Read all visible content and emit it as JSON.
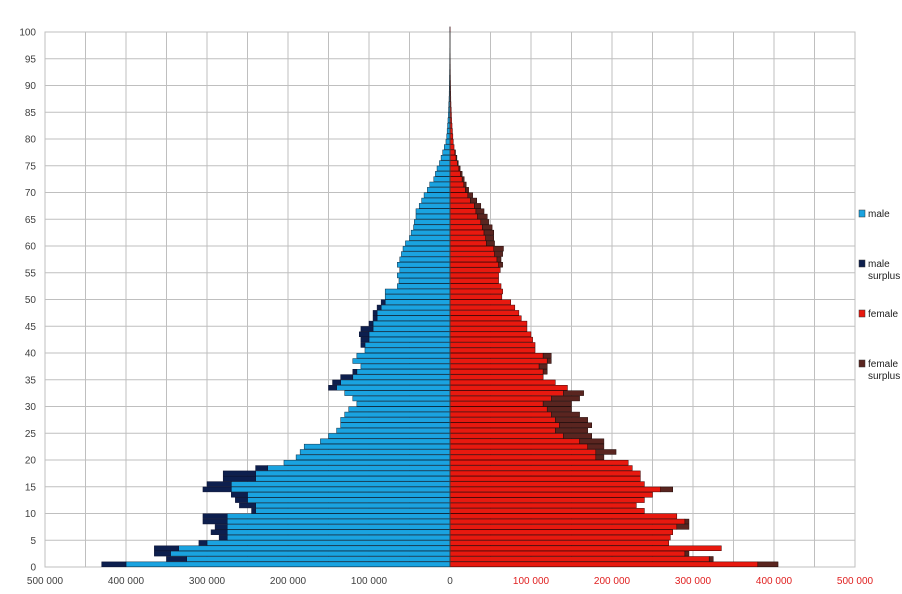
{
  "chart_data": {
    "type": "bar",
    "orientation": "horizontal-pyramid",
    "title": "",
    "xlabel": "",
    "ylabel": "",
    "xlim": [
      -500000,
      500000
    ],
    "ylim": [
      0,
      100
    ],
    "grid": true,
    "legend_position": "right",
    "y_ticks": [
      "0",
      "5",
      "10",
      "15",
      "20",
      "25",
      "30",
      "35",
      "40",
      "45",
      "50",
      "55",
      "60",
      "65",
      "70",
      "75",
      "80",
      "85",
      "90",
      "95",
      "100"
    ],
    "x_ticks_left": [
      "500 000",
      "400 000",
      "300 000",
      "200 000",
      "100 000"
    ],
    "x_tick_zero": "0",
    "x_ticks_right": [
      "100 000",
      "200 000",
      "300 000",
      "400 000",
      "500 000"
    ],
    "legend": [
      {
        "key": "male",
        "label": "male",
        "label2": "",
        "color": "#1aa3e0"
      },
      {
        "key": "male_surplus",
        "label": "male",
        "label2": "surplus",
        "color": "#0d1f4e"
      },
      {
        "key": "female",
        "label": "female",
        "label2": "",
        "color": "#e8190f"
      },
      {
        "key": "female_surplus",
        "label": "female",
        "label2": "surplus",
        "color": "#5a2520"
      }
    ],
    "ages": [
      0,
      1,
      2,
      3,
      4,
      5,
      6,
      7,
      8,
      9,
      10,
      11,
      12,
      13,
      14,
      15,
      16,
      17,
      18,
      19,
      20,
      21,
      22,
      23,
      24,
      25,
      26,
      27,
      28,
      29,
      30,
      31,
      32,
      33,
      34,
      35,
      36,
      37,
      38,
      39,
      40,
      41,
      42,
      43,
      44,
      45,
      46,
      47,
      48,
      49,
      50,
      51,
      52,
      53,
      54,
      55,
      56,
      57,
      58,
      59,
      60,
      61,
      62,
      63,
      64,
      65,
      66,
      67,
      68,
      69,
      70,
      71,
      72,
      73,
      74,
      75,
      76,
      77,
      78,
      79,
      80,
      81,
      82,
      83,
      84,
      85,
      86,
      87,
      88,
      89,
      90,
      91,
      92,
      93,
      94,
      95,
      96,
      97,
      98,
      99,
      100
    ],
    "series": [
      {
        "name": "male",
        "values": [
          400000,
          325000,
          345000,
          335000,
          300000,
          275000,
          275000,
          275000,
          275000,
          275000,
          240000,
          240000,
          250000,
          250000,
          270000,
          270000,
          240000,
          240000,
          225000,
          205000,
          190000,
          185000,
          180000,
          160000,
          150000,
          140000,
          135000,
          135000,
          130000,
          125000,
          115000,
          120000,
          130000,
          140000,
          135000,
          120000,
          115000,
          110000,
          120000,
          115000,
          105000,
          105000,
          100000,
          100000,
          95000,
          95000,
          90000,
          90000,
          85000,
          80000,
          80000,
          80000,
          65000,
          63000,
          65000,
          62000,
          65000,
          62000,
          60000,
          58000,
          55000,
          50000,
          48000,
          45000,
          44000,
          42000,
          42000,
          38000,
          35000,
          32000,
          28000,
          25000,
          20000,
          18000,
          16000,
          13000,
          11000,
          9000,
          7000,
          5000,
          4000,
          3500,
          3000,
          2500,
          2000,
          1800,
          1500,
          1200,
          1000,
          900,
          800,
          700,
          600,
          500,
          450,
          400,
          350,
          300,
          250,
          200,
          150
        ]
      },
      {
        "name": "male surplus",
        "values": [
          30000,
          25000,
          20000,
          30000,
          10000,
          10000,
          20000,
          15000,
          30000,
          30000,
          5000,
          20000,
          15000,
          20000,
          35000,
          30000,
          40000,
          40000,
          15000,
          0,
          0,
          0,
          0,
          0,
          0,
          0,
          0,
          0,
          0,
          0,
          0,
          0,
          0,
          10000,
          10000,
          15000,
          5000,
          0,
          0,
          0,
          0,
          5000,
          10000,
          12000,
          15000,
          5000,
          5000,
          5000,
          5000,
          5000,
          0,
          0,
          0,
          0,
          0,
          0,
          0,
          0,
          0,
          0,
          0,
          0,
          0,
          0,
          0,
          0,
          0,
          0,
          0,
          0,
          0,
          0,
          0,
          0,
          0,
          0,
          0,
          0,
          0,
          0,
          0,
          0,
          0,
          0,
          0,
          0,
          0,
          0,
          0,
          0,
          0,
          0,
          0,
          0,
          0,
          0,
          0,
          0,
          0,
          0,
          0
        ]
      },
      {
        "name": "female",
        "values": [
          380000,
          320000,
          290000,
          335000,
          270000,
          272000,
          275000,
          280000,
          290000,
          280000,
          240000,
          230000,
          240000,
          250000,
          260000,
          240000,
          235000,
          235000,
          225000,
          220000,
          180000,
          180000,
          170000,
          160000,
          140000,
          130000,
          135000,
          130000,
          125000,
          120000,
          115000,
          125000,
          140000,
          145000,
          130000,
          115000,
          115000,
          110000,
          120000,
          115000,
          105000,
          105000,
          102000,
          100000,
          95000,
          95000,
          88000,
          85000,
          80000,
          75000,
          64000,
          65000,
          63000,
          60000,
          60000,
          62000,
          60000,
          58000,
          55000,
          54000,
          45000,
          44000,
          42000,
          40000,
          38000,
          34000,
          32000,
          30000,
          25000,
          22000,
          19000,
          17000,
          15000,
          13000,
          11000,
          9000,
          7500,
          6000,
          5000,
          4000,
          3500,
          3000,
          2500,
          2000,
          1800,
          1500,
          1200,
          1000,
          900,
          800,
          700,
          600,
          500,
          450,
          400,
          350,
          300,
          250,
          200,
          150,
          100
        ]
      },
      {
        "name": "female surplus",
        "values": [
          25000,
          5000,
          5000,
          0,
          0,
          0,
          0,
          15000,
          5000,
          0,
          0,
          0,
          0,
          0,
          15000,
          0,
          0,
          0,
          0,
          0,
          10000,
          25000,
          20000,
          30000,
          35000,
          40000,
          40000,
          40000,
          35000,
          30000,
          35000,
          35000,
          25000,
          0,
          0,
          0,
          5000,
          10000,
          5000,
          10000,
          0,
          0,
          0,
          0,
          0,
          0,
          0,
          0,
          0,
          0,
          0,
          0,
          0,
          0,
          0,
          0,
          5000,
          5000,
          10000,
          12000,
          10000,
          10000,
          12000,
          12000,
          10000,
          12000,
          10000,
          8000,
          8000,
          6000,
          4000,
          3000,
          2500,
          2000,
          1500,
          1200,
          1000,
          800,
          0,
          0,
          0,
          0,
          0,
          0,
          0,
          0,
          0,
          0,
          0,
          0,
          0,
          0,
          0,
          0,
          0,
          0,
          0,
          0,
          0,
          0,
          0
        ]
      }
    ]
  }
}
